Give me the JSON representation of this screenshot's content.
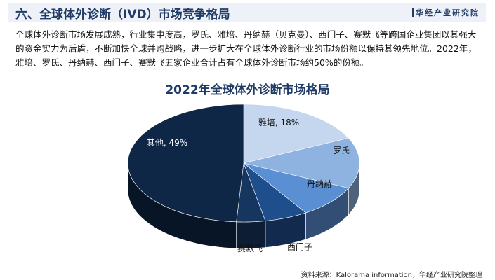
{
  "header": {
    "title": "六、全球体外诊断（IVD）市场竞争格局",
    "brand": "华经产业研究院"
  },
  "paragraph": "全球体外诊断市场发展成熟，行业集中度高，罗氏、雅培、丹纳赫（贝克曼）、西门子、赛默飞等跨国企业集团以其强大的资金实力为后盾，不断加快全球并购战略，进一步扩大在全球体外诊断行业的市场份额以保持其领先地位。2022年，雅培、罗氏、丹纳赫、西门子、赛默飞五家企业合计占有全球体外诊断市场约50%的份额。",
  "source": "资料来源：Kalorama information，华经产业研究院整理",
  "chart_data": {
    "type": "pie",
    "title": "2022年全球体外诊断市场格局",
    "categories": [
      "雅培",
      "罗氏",
      "丹纳赫",
      "西门子",
      "赛默飞",
      "其他"
    ],
    "values": [
      18,
      14,
      9,
      6,
      4,
      49
    ],
    "labels": [
      "雅培, 18%",
      "罗氏",
      "丹纳赫",
      "西门子",
      "赛默飞",
      "其他, 49%"
    ],
    "colors": [
      "#c5d7ee",
      "#8eb3e0",
      "#5b8fd3",
      "#1f4e8c",
      "#17365f",
      "#0f2747"
    ],
    "style": "3d"
  }
}
